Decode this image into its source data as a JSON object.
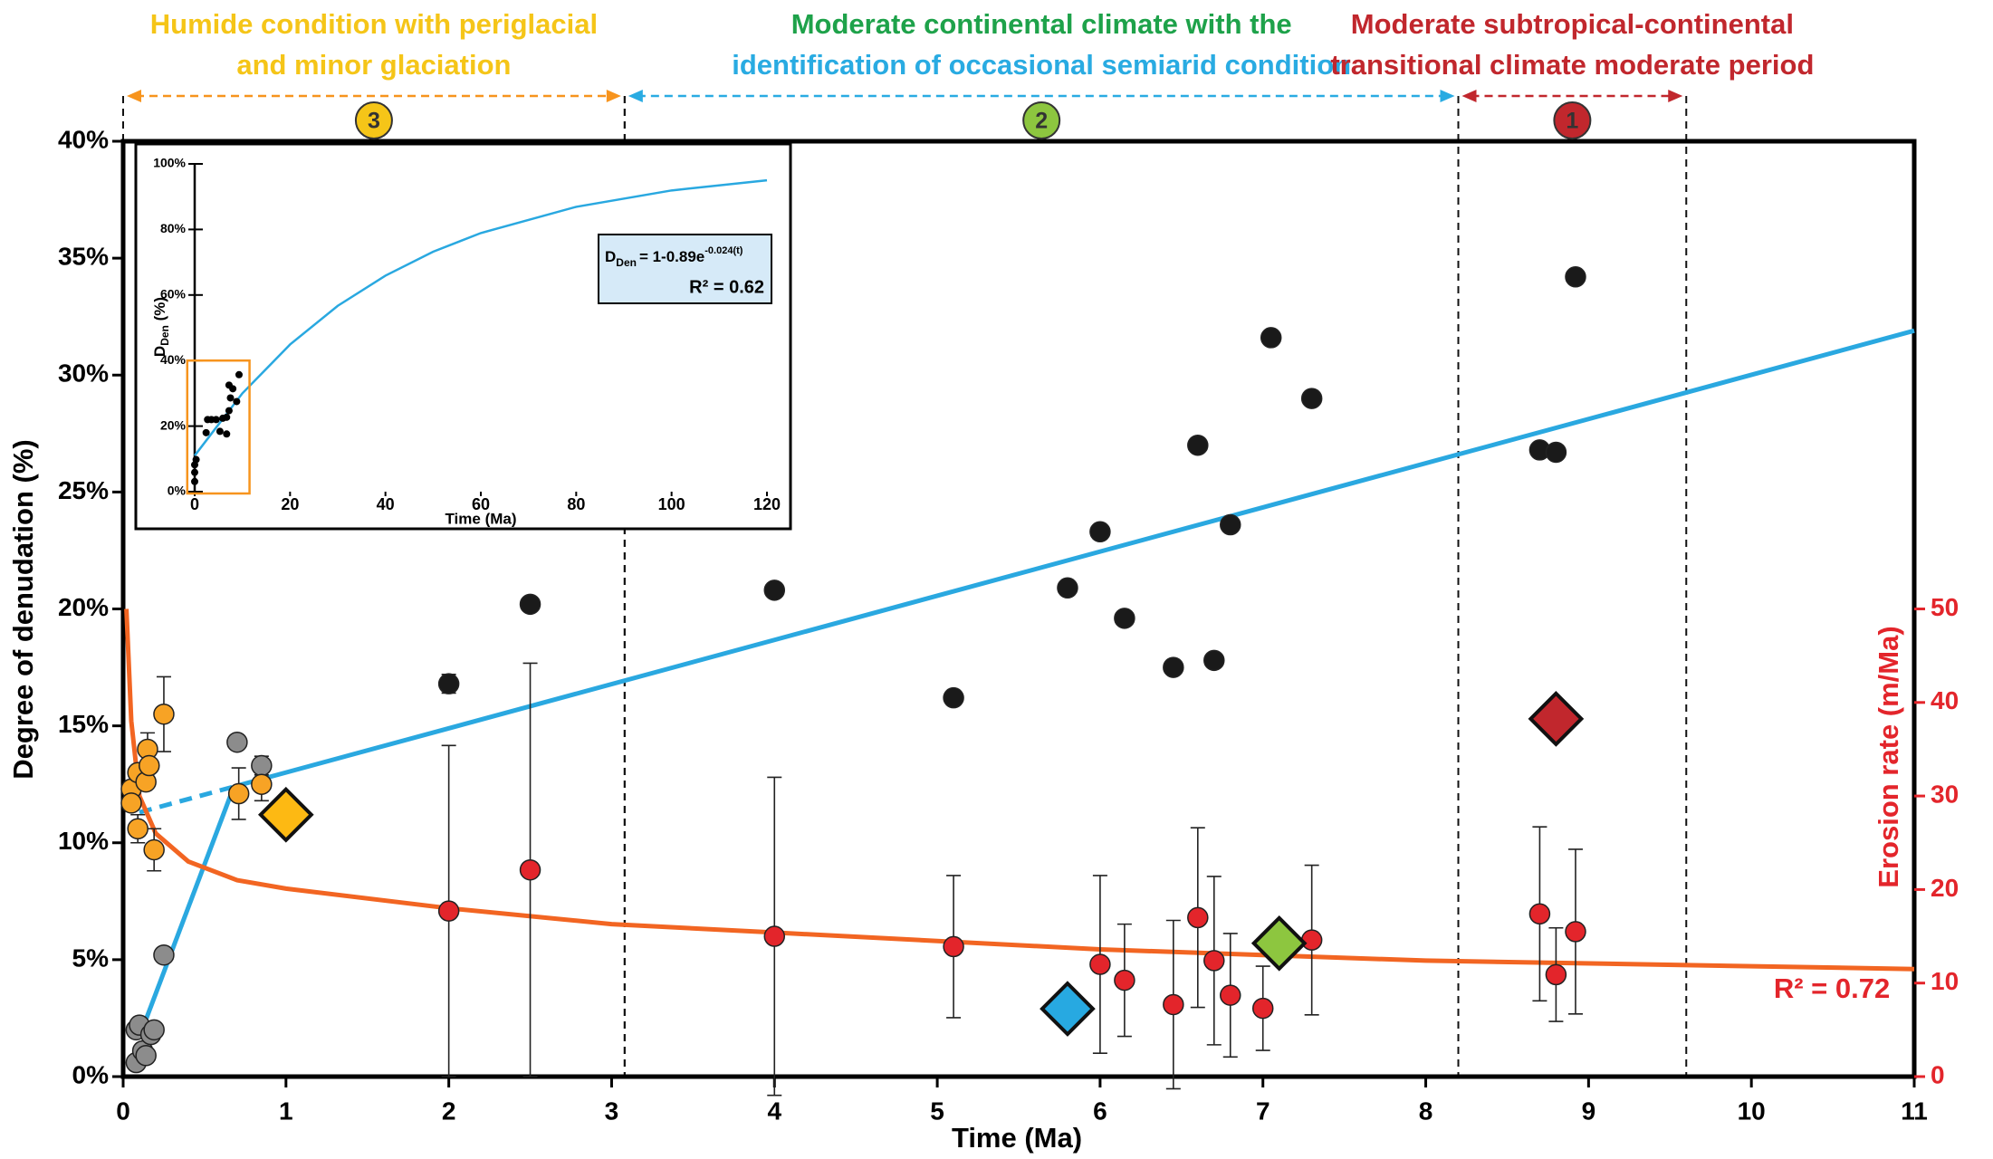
{
  "chart_data": [
    {
      "type": "scatter",
      "xlabel": "Time (Ma)",
      "ylabel": "Degree of denudation (%)",
      "y2label": "Erosion rate (m/Ma)",
      "xlim": [
        0,
        11
      ],
      "xticks": [
        0,
        1,
        2,
        3,
        4,
        5,
        6,
        7,
        8,
        9,
        10,
        11
      ],
      "ylim": [
        0,
        40
      ],
      "yticks": [
        {
          "value": 0,
          "label": "0%"
        },
        {
          "value": 5,
          "label": "5%"
        },
        {
          "value": 10,
          "label": "10%"
        },
        {
          "value": 15,
          "label": "15%"
        },
        {
          "value": 20,
          "label": "20%"
        },
        {
          "value": 25,
          "label": "25%"
        },
        {
          "value": 30,
          "label": "30%"
        },
        {
          "value": 35,
          "label": "35%"
        },
        {
          "value": 40,
          "label": "40%"
        }
      ],
      "y2lim": [
        0,
        100
      ],
      "y2ticks": [
        0,
        10,
        20,
        30,
        40,
        50
      ],
      "y2color": "#e3252b",
      "annotation": "R² = 0.72",
      "annotation_color": "#e3252b",
      "phases": [
        {
          "lines": [
            "Humide condition with periglacial",
            "and minor glaciation"
          ],
          "line_colors": [
            "#f5c518",
            "#f5c518"
          ],
          "number": 3,
          "color": "#f7941d",
          "circle": "#f5c518",
          "start": 0,
          "end": 3.08
        },
        {
          "lines": [
            "Moderate continental climate with the",
            "identification of occasional semiarid condition"
          ],
          "line_colors": [
            "#1ea24a",
            "#29abe2"
          ],
          "number": 2,
          "color": "#29abe2",
          "circle": "#8dc63f",
          "start": 3.08,
          "end": 8.2
        },
        {
          "lines": [
            "Moderate subtropical-continental",
            "transitional climate moderate period"
          ],
          "line_colors": [
            "#c1272d",
            "#c1272d"
          ],
          "number": 1,
          "color": "#c1272d",
          "circle": "#c1272d",
          "start": 8.2,
          "end": 9.6
        }
      ],
      "series": [
        {
          "style": "solid",
          "color": "#2aa8e0",
          "x": [
            0.1,
            0.68
          ],
          "values": [
            1.7,
            12.4
          ]
        },
        {
          "style": "dashed",
          "color": "#2aa8e0",
          "x": [
            0.1,
            0.68
          ],
          "values": [
            11.3,
            12.4
          ]
        },
        {
          "style": "solid",
          "color": "#2aa8e0",
          "x": [
            0.68,
            11
          ],
          "values": [
            12.4,
            31.9
          ]
        },
        {
          "style": "solid",
          "color": "#f26522",
          "axis": "y2",
          "x": [
            0.02,
            0.05,
            0.1,
            0.2,
            0.4,
            0.7,
            1,
            2,
            3,
            4,
            6,
            8,
            11
          ],
          "values": [
            50,
            38,
            30,
            26,
            23,
            21,
            20.1,
            18,
            16.3,
            15.4,
            13.6,
            12.4,
            11.5
          ]
        },
        {
          "style": "circle",
          "color": "#1a1a1a",
          "x": [
            2.0,
            2.5,
            4.0,
            5.1,
            5.8,
            6.0,
            6.15,
            6.45,
            6.6,
            6.7,
            6.8,
            7.05,
            7.3,
            8.7,
            8.8,
            8.92
          ],
          "values": [
            16.8,
            20.2,
            20.8,
            16.2,
            20.9,
            23.3,
            19.6,
            17.5,
            27.0,
            17.8,
            23.6,
            31.6,
            29.0,
            26.8,
            26.7,
            34.2
          ],
          "errors": [
            0.4,
            null,
            null,
            null,
            null,
            null,
            null,
            null,
            null,
            null,
            null,
            null,
            null,
            null,
            null,
            null
          ]
        },
        {
          "style": "circle",
          "color": "#8c8c8c",
          "x": [
            0.08,
            0.08,
            0.1,
            0.12,
            0.14,
            0.17,
            0.19,
            0.25,
            0.7,
            0.85
          ],
          "values": [
            0.6,
            2.0,
            2.2,
            1.1,
            0.9,
            1.8,
            2.0,
            5.2,
            14.3,
            13.3
          ],
          "errors": [
            null,
            null,
            null,
            null,
            null,
            null,
            null,
            null,
            null,
            0.4
          ]
        },
        {
          "style": "circle",
          "color": "#f7a325",
          "x": [
            0.05,
            0.05,
            0.09,
            0.09,
            0.14,
            0.15,
            0.16,
            0.19,
            0.25,
            0.71,
            0.85
          ],
          "values": [
            12.3,
            11.7,
            10.6,
            13.0,
            12.6,
            14.0,
            13.3,
            9.7,
            15.5,
            12.1,
            12.5
          ],
          "errors": [
            null,
            null,
            0.6,
            null,
            null,
            0.7,
            null,
            0.9,
            1.6,
            1.1,
            0.7
          ]
        },
        {
          "style": "circle",
          "color": "#e3252b",
          "axis": "y2",
          "x": [
            2.0,
            2.5,
            4.0,
            5.1,
            6.0,
            6.15,
            6.45,
            6.6,
            6.7,
            6.8,
            7.0,
            7.3,
            8.7,
            8.8,
            8.92
          ],
          "values": [
            17.7,
            22.1,
            15.0,
            13.9,
            12.0,
            10.3,
            7.7,
            17.0,
            12.4,
            8.7,
            7.3,
            14.6,
            17.4,
            10.9,
            15.5
          ],
          "errors": [
            17.7,
            22.1,
            17,
            7.6,
            9.5,
            6,
            9,
            9.6,
            9,
            6.6,
            4.5,
            8,
            9.3,
            5,
            8.8
          ]
        },
        {
          "style": "diamond",
          "color": "#fdb913",
          "x": [
            1.0
          ],
          "values": [
            11.2
          ]
        },
        {
          "style": "diamond",
          "color": "#27a9e1",
          "x": [
            5.8
          ],
          "values": [
            2.9
          ]
        },
        {
          "style": "diamond",
          "color": "#8dc63f",
          "x": [
            7.1
          ],
          "values": [
            5.7
          ]
        },
        {
          "style": "diamond",
          "color": "#c1272d",
          "x": [
            8.8
          ],
          "values": [
            15.3
          ]
        }
      ]
    },
    {
      "type": "scatter",
      "xlabel": "Time (Ma)",
      "ylabel": "D",
      "ylabel_sub": "Den",
      "ylabel_suffix": " (%)",
      "xlim": [
        0,
        120
      ],
      "xticks": [
        0,
        20,
        40,
        60,
        80,
        100,
        120
      ],
      "ylim": [
        0,
        100
      ],
      "yticks": [
        {
          "value": 0,
          "label": "0%"
        },
        {
          "value": 20,
          "label": "20%"
        },
        {
          "value": 40,
          "label": "40%"
        },
        {
          "value": 60,
          "label": "60%"
        },
        {
          "value": 80,
          "label": "80%"
        },
        {
          "value": 100,
          "label": "100%"
        }
      ],
      "zoom_box": {
        "xlim": [
          -0.8,
          11.5
        ],
        "ylim": [
          0,
          40
        ],
        "color": "#f7941d"
      },
      "equation": {
        "lhs": "D",
        "lhs_sub": "Den",
        "rhs": "= 1-0.89e",
        "rhs_sup": "-0.024(t)",
        "r2": "R² = 0.62",
        "fill": "#d6eaf8"
      },
      "series": [
        {
          "style": "solid",
          "color": "#29a8e0",
          "x": [
            0,
            10,
            20,
            30,
            40,
            50,
            60,
            80,
            100,
            120
          ],
          "values": [
            11,
            30.0,
            44.9,
            56.7,
            65.9,
            73.2,
            78.9,
            86.9,
            91.9,
            95.0
          ]
        },
        {
          "style": "dot",
          "color": "#000000",
          "x": [
            0,
            0,
            0,
            0.3,
            2.4,
            2.7,
            3.5,
            4.5,
            5.9,
            6.7,
            5.3,
            6.7,
            7.2,
            7.5,
            7.2,
            8,
            8.8,
            9.3
          ],
          "values": [
            3.1,
            5.9,
            8.2,
            9.8,
            18,
            22,
            22,
            22,
            22.4,
            22.7,
            18.4,
            17.6,
            24.7,
            28.6,
            32.5,
            31.4,
            27.5,
            35.7
          ]
        }
      ]
    }
  ]
}
